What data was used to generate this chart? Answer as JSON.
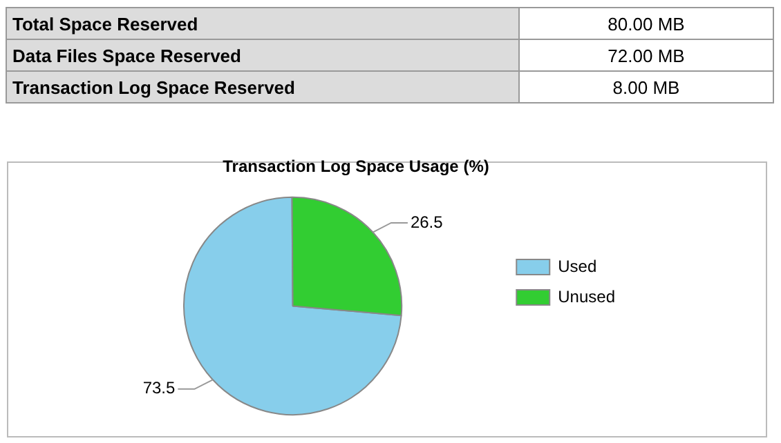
{
  "chart_data": {
    "type": "pie",
    "title": "Transaction Log Space Usage (%)",
    "categories": [
      "Used",
      "Unused"
    ],
    "values": [
      73.5,
      26.5
    ],
    "colors": [
      "#87ceeb",
      "#32cd32"
    ],
    "data_labels": true,
    "legend": "right",
    "annotations": [
      "Total Space Reserved",
      "80.00 MB",
      "Data Files Space Reserved",
      "72.00 MB",
      "Transaction Log Space Reserved",
      "8.00 MB"
    ]
  }
}
